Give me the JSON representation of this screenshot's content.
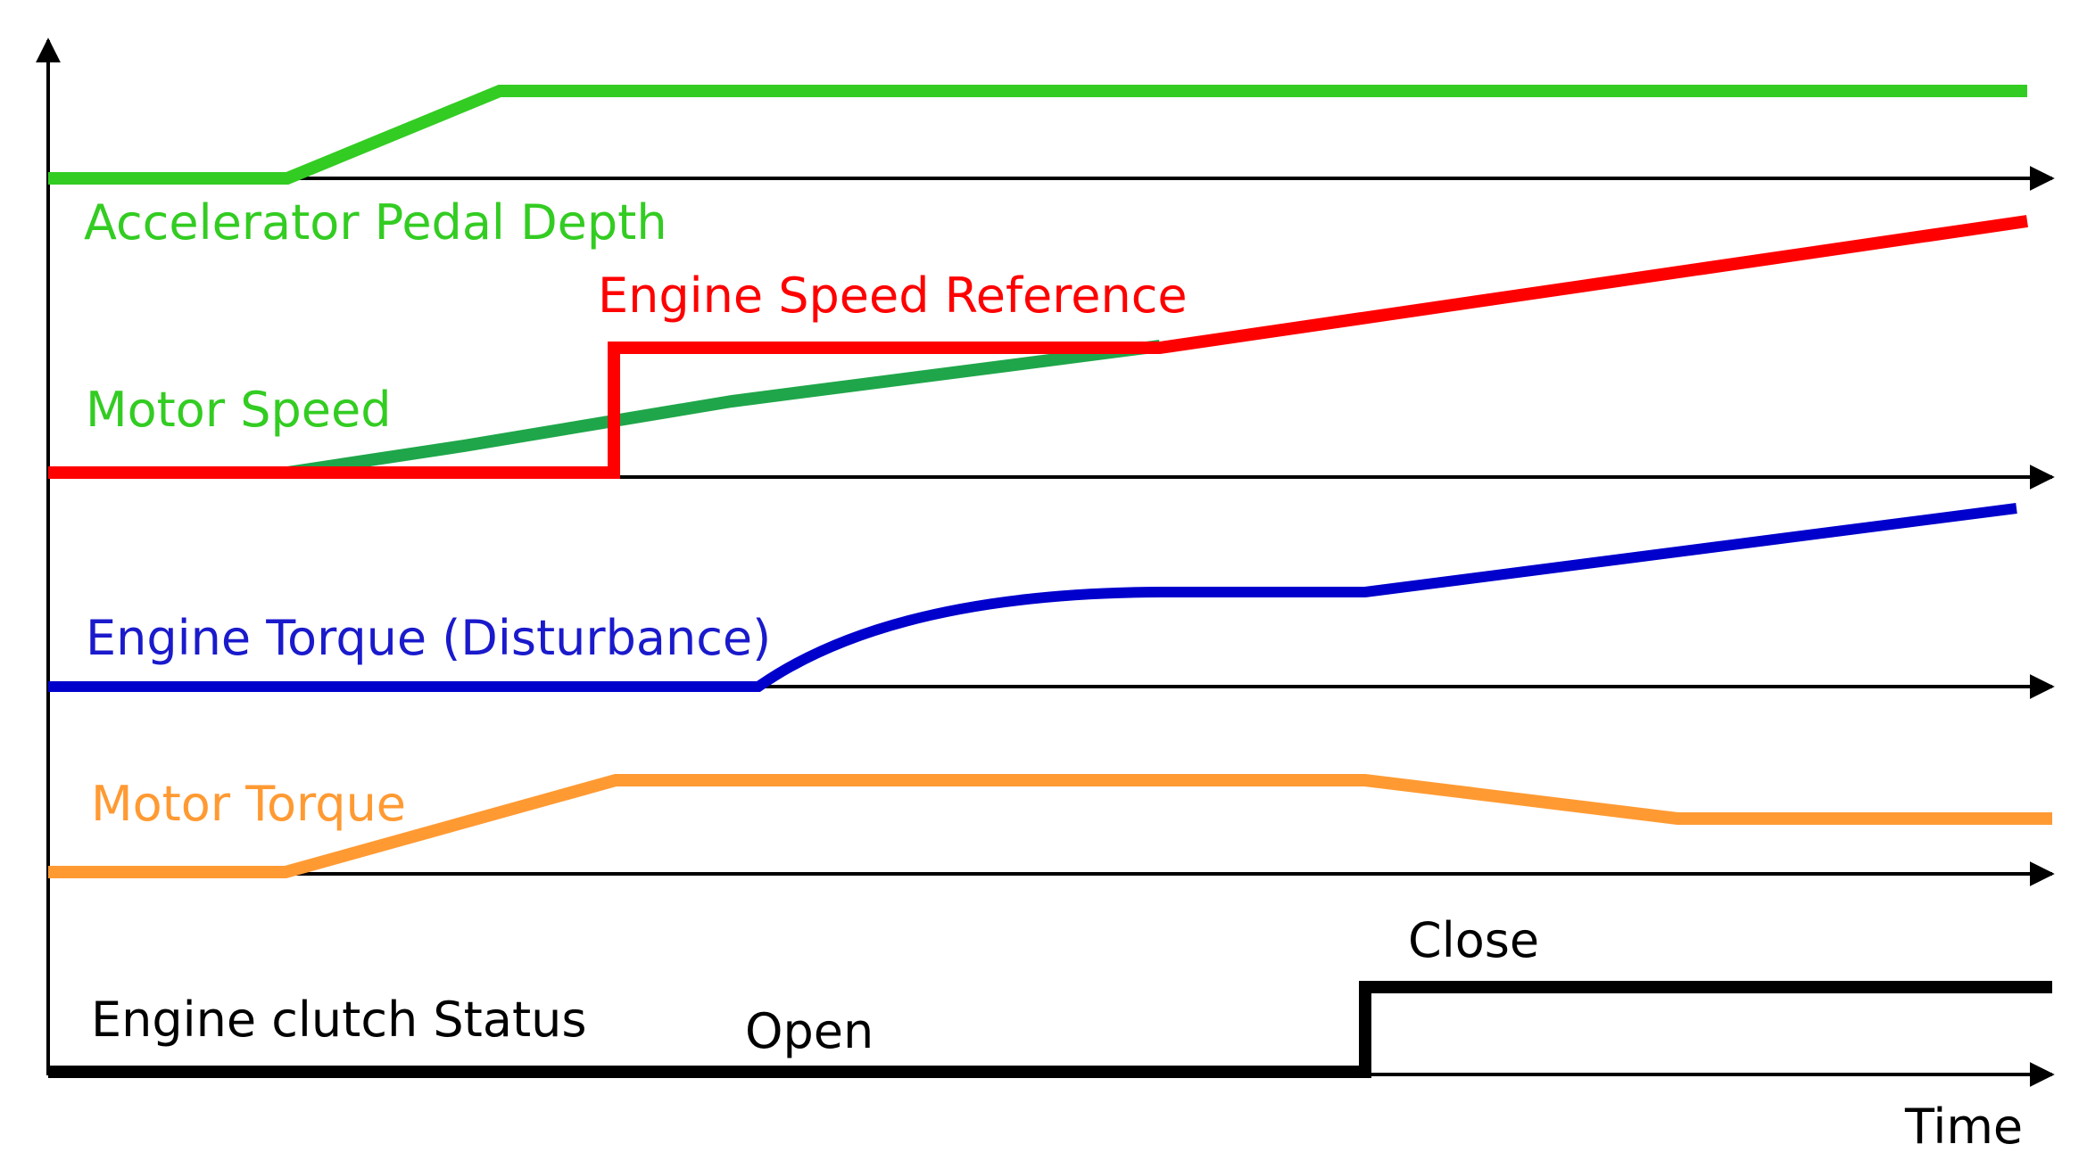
{
  "axis": {
    "time_label": "Time"
  },
  "signals": [
    {
      "id": "accelerator",
      "label": "Accelerator Pedal Depth",
      "color": "#33cc22"
    },
    {
      "id": "engine-speed-ref",
      "label": "Engine Speed Reference",
      "color": "#ff0000"
    },
    {
      "id": "motor-speed",
      "label": "Motor Speed",
      "color": "#33cc22",
      "line_color": "#1fa64a"
    },
    {
      "id": "engine-torque",
      "label": "Engine Torque (Disturbance)",
      "color": "#1a1acc",
      "line_color": "#0000cc"
    },
    {
      "id": "motor-torque",
      "label": "Motor Torque",
      "color": "#ff9a33"
    },
    {
      "id": "clutch",
      "label": "Engine clutch Status",
      "color": "#000000"
    }
  ],
  "clutch_states": {
    "open": "Open",
    "close": "Close"
  }
}
